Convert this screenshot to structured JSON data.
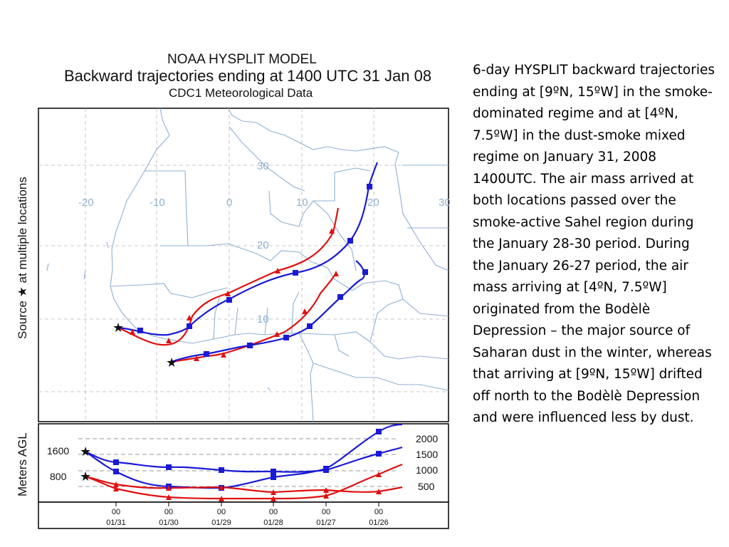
{
  "header": {
    "model_name": "NOAA HYSPLIT MODEL",
    "main_title": "Backward trajectories ending at 1400 UTC 31 Jan 08",
    "data_source": "CDC1 Meteorological Data"
  },
  "map_panel": {
    "side_label": "Source ★ at multiple locations",
    "lon_labels": [
      "-20",
      "-10",
      "0",
      "10",
      "20",
      "30"
    ],
    "lat_labels": [
      "30",
      "20",
      "10"
    ]
  },
  "height_panel": {
    "side_label": "Meters AGL",
    "source_heights": [
      "1600",
      "800"
    ],
    "right_levels": [
      "2000",
      "1500",
      "1000",
      "500"
    ],
    "time_ticks": [
      {
        "hour": "00",
        "date": "01/31"
      },
      {
        "hour": "00",
        "date": "01/30"
      },
      {
        "hour": "00",
        "date": "01/29"
      },
      {
        "hour": "00",
        "date": "01/28"
      },
      {
        "hour": "00",
        "date": "01/27"
      },
      {
        "hour": "00",
        "date": "01/26"
      }
    ]
  },
  "colors": {
    "trajectory_red": "#e01010",
    "trajectory_blue": "#1a1ad6",
    "map_lines": "#8fb0d3"
  },
  "caption": "6-day HYSPLIT backward trajectories ending at [9ºN, 15ºW] in the smoke-dominated regime and at [4ºN, 7.5ºW] in the dust-smoke mixed regime on January 31, 2008 1400UTC. The air mass arrived at both locations passed over the smoke-active Sahel region during the January 28-30 period. During the January 26-27 period, the air mass arriving at [4ºN, 7.5ºW] originated from the Bodèlè Depression – the major source of Saharan dust in the winter, whereas that arriving at [9ºN, 15ºW] drifted off north to the Bodèlè Depression and were influenced less by dust."
}
